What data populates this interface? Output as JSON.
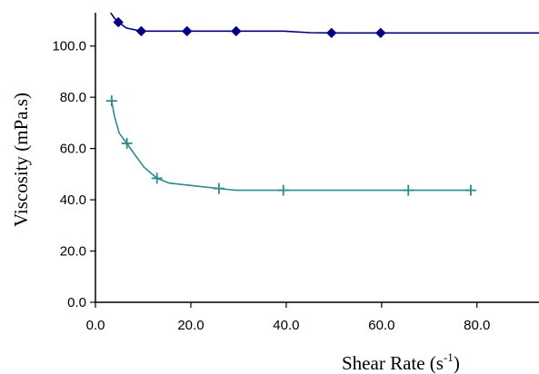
{
  "chart_data": {
    "type": "line",
    "xlabel": "Shear Rate (s",
    "xlabel_sup": "-1",
    "xlabel_close": ")",
    "ylabel": "Viscosity (mPa.s)",
    "xlim": [
      0,
      93
    ],
    "ylim": [
      0,
      113
    ],
    "grid": false,
    "legend": "none",
    "x_ticks": [
      {
        "value": 0,
        "label": "0.0"
      },
      {
        "value": 20,
        "label": "20.0"
      },
      {
        "value": 40,
        "label": "40.0"
      },
      {
        "value": 60,
        "label": "60.0"
      },
      {
        "value": 80,
        "label": "80.0"
      }
    ],
    "y_ticks": [
      {
        "value": 0,
        "label": "0.0"
      },
      {
        "value": 20,
        "label": "20.0"
      },
      {
        "value": 40,
        "label": "40.0"
      },
      {
        "value": 60,
        "label": "60.0"
      },
      {
        "value": 80,
        "label": "80.0"
      },
      {
        "value": 100,
        "label": "100.0"
      }
    ],
    "series": [
      {
        "color": "#000080",
        "marker": "diamond",
        "points": [
          [
            4.8,
            109.3
          ],
          [
            9.6,
            105.8
          ],
          [
            19.2,
            105.8
          ],
          [
            29.5,
            105.8
          ],
          [
            49.5,
            105.1
          ],
          [
            59.8,
            105.1
          ]
        ],
        "curve": [
          [
            3.2,
            113
          ],
          [
            3.9,
            111.0
          ],
          [
            4.8,
            109.3
          ],
          [
            6.5,
            107.0
          ],
          [
            9.6,
            105.8
          ],
          [
            19.2,
            105.8
          ],
          [
            29.5,
            105.8
          ],
          [
            39.5,
            105.8
          ],
          [
            45,
            105.2
          ],
          [
            49.5,
            105.1
          ],
          [
            59.8,
            105.1
          ],
          [
            93,
            105.1
          ]
        ]
      },
      {
        "color": "#2e8b8b",
        "marker": "plus",
        "points": [
          [
            3.4,
            78.6
          ],
          [
            6.6,
            62.0
          ],
          [
            12.9,
            48.4
          ],
          [
            25.9,
            44.4
          ],
          [
            39.4,
            43.7
          ],
          [
            65.6,
            43.7
          ],
          [
            78.7,
            43.7
          ]
        ],
        "curve": [
          [
            3.4,
            78.6
          ],
          [
            4.0,
            72.5
          ],
          [
            5.0,
            66.0
          ],
          [
            6.6,
            62.0
          ],
          [
            8.5,
            57.0
          ],
          [
            10.2,
            52.7
          ],
          [
            12.9,
            48.4
          ],
          [
            15.5,
            46.5
          ],
          [
            20,
            45.6
          ],
          [
            25.9,
            44.4
          ],
          [
            29.5,
            43.7
          ],
          [
            39.4,
            43.7
          ],
          [
            65.6,
            43.7
          ],
          [
            78.7,
            43.7
          ]
        ]
      }
    ]
  }
}
